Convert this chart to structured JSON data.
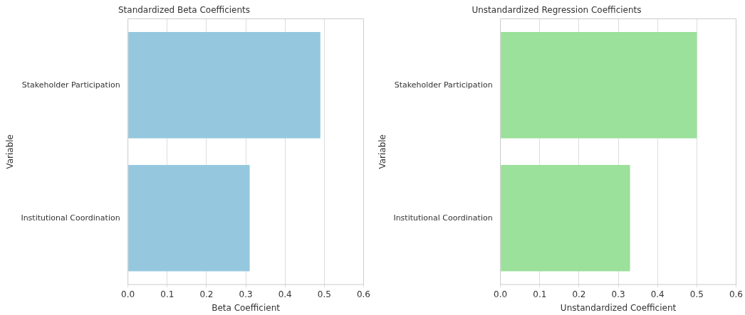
{
  "chart_data": [
    {
      "type": "bar",
      "orientation": "horizontal",
      "title": "Standardized Beta Coefficients",
      "xlabel": "Beta Coefficient",
      "ylabel": "Variable",
      "categories": [
        "Stakeholder Participation",
        "Institutional Coordination"
      ],
      "values": [
        0.49,
        0.31
      ],
      "color": "#95c8de",
      "xlim": [
        0,
        0.6
      ],
      "xticks": [
        {
          "value": 0,
          "label": "0.0"
        },
        0.1,
        0.2,
        0.3,
        0.4,
        0.5,
        0.6
      ],
      "grid": "x",
      "legend": false
    },
    {
      "type": "bar",
      "orientation": "horizontal",
      "title": "Unstandardized Regression Coefficients",
      "xlabel": "Unstandardized Coefficient",
      "ylabel": "Variable",
      "categories": [
        "Stakeholder Participation",
        "Institutional Coordination"
      ],
      "values": [
        0.5,
        0.33
      ],
      "color": "#9be09b",
      "xlim": [
        0,
        0.6
      ],
      "xticks": [
        {
          "value": 0,
          "label": "0.0"
        },
        0.1,
        0.2,
        0.3,
        0.4,
        0.5,
        0.6
      ],
      "grid": "x",
      "legend": false
    }
  ]
}
